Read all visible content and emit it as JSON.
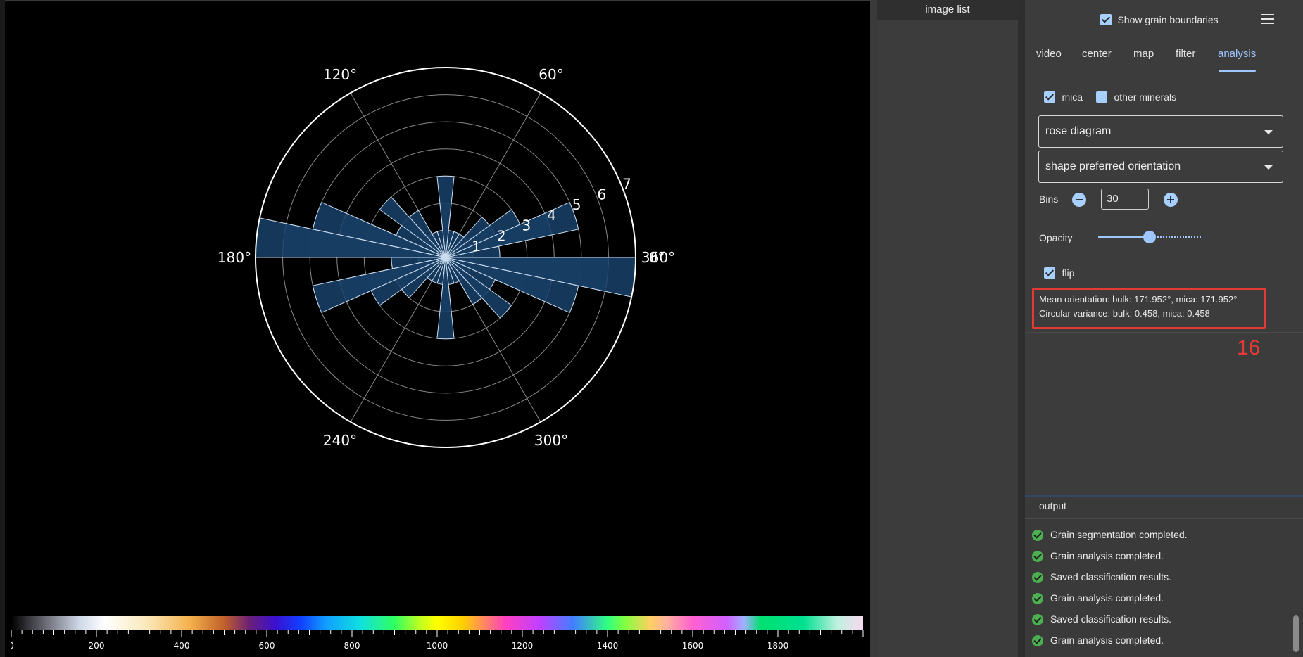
{
  "viewer": {
    "chart_data": {
      "type": "rose",
      "bins": 30,
      "theta_tick_labels": [
        "0°",
        "60°",
        "120°",
        "180°",
        "240°",
        "300°",
        "360°"
      ],
      "radial_tick_labels": [
        "1",
        "2",
        "3",
        "4",
        "5",
        "6",
        "7"
      ],
      "rmax": 7,
      "bin_edges_deg": [
        0,
        12,
        24,
        36,
        48,
        60,
        72,
        84,
        96,
        108,
        120,
        132,
        144,
        156,
        168,
        180
      ],
      "counts": [
        2,
        5,
        3,
        2,
        1,
        1,
        1,
        3,
        1,
        1,
        2,
        3,
        2,
        5,
        7
      ],
      "colors": {
        "fill": "#173d63",
        "stroke": "#c9dcef",
        "grid": "#8a8a8a",
        "outer": "#ffffff"
      }
    },
    "colorbar": {
      "tick_labels": [
        "0",
        "200",
        "400",
        "600",
        "800",
        "1000",
        "1200",
        "1400",
        "1600",
        "1800"
      ],
      "max": 2000
    }
  },
  "image_list": {
    "title": "image list"
  },
  "right_panel": {
    "show_grain_boundaries_label": "Show grain boundaries",
    "tabs": [
      "video",
      "center",
      "map",
      "filter",
      "analysis"
    ],
    "active_tab": "analysis",
    "mica_label": "mica",
    "other_minerals_label": "other minerals",
    "plot_type": "rose diagram",
    "metric": "shape preferred orientation",
    "bins_label": "Bins",
    "bins_value": "30",
    "opacity_label": "Opacity",
    "opacity_value": 0.5,
    "flip_label": "flip",
    "stats_line1": "Mean orientation: bulk: 171.952°, mica: 171.952°",
    "stats_line2": "Circular variance: bulk: 0.458, mica: 0.458",
    "annotation_number": "16",
    "accent_color": "#9fc7ff",
    "highlight_color": "#e53935"
  },
  "output": {
    "title": "output",
    "messages": [
      "Grain segmentation completed.",
      "Grain analysis completed.",
      "Saved classification results.",
      "Grain analysis completed.",
      "Saved classification results.",
      "Grain analysis completed."
    ]
  }
}
